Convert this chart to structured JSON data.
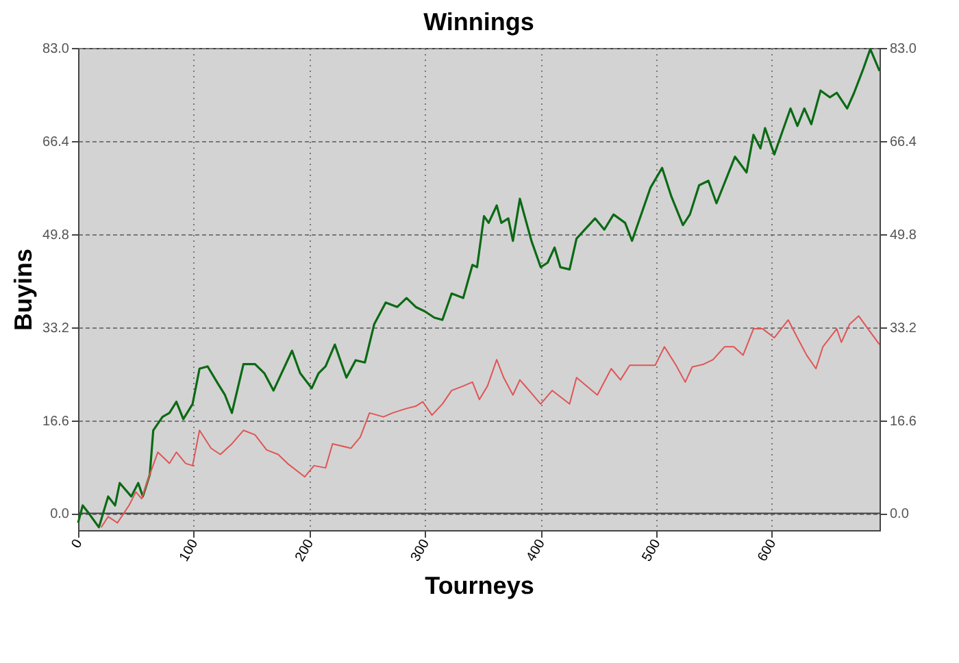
{
  "chart_data": {
    "type": "line",
    "title": "Winnings",
    "xlabel": "Tourneys",
    "ylabel": "Buyins",
    "xlim": [
      0,
      693
    ],
    "xticks": [
      0,
      100,
      200,
      300,
      400,
      500,
      600
    ],
    "ylim": [
      -3,
      83
    ],
    "yticks": [
      {
        "value": 0,
        "label": "0.0"
      },
      16.6,
      33.2,
      49.8,
      66.4,
      {
        "value": 83,
        "label": "83.0"
      }
    ],
    "y2lim": [
      -3,
      83
    ],
    "y2ticks": [
      {
        "value": 0,
        "label": "0.0"
      },
      16.6,
      33.2,
      49.8,
      66.4,
      {
        "value": 83,
        "label": "83.0"
      }
    ],
    "grid": true,
    "marker": "none",
    "line_style": "solid",
    "ref_lines": [
      {
        "axis": "y",
        "value": 0,
        "color": "#404040",
        "line_style": "solid"
      }
    ],
    "series": [
      {
        "color": "#0b6a14",
        "x": [
          0,
          4,
          10,
          18,
          26,
          32,
          36,
          46,
          52,
          56,
          62,
          65,
          73,
          79,
          85,
          91,
          99,
          105,
          112,
          121,
          127,
          133,
          143,
          153,
          161,
          169,
          185,
          192,
          202,
          208,
          214,
          222,
          232,
          240,
          248,
          256,
          266,
          276,
          284,
          292,
          300,
          308,
          315,
          323,
          333,
          341,
          345,
          351,
          355,
          362,
          366,
          372,
          376,
          382,
          392,
          400,
          406,
          412,
          417,
          425,
          431,
          447,
          455,
          463,
          473,
          479,
          495,
          505,
          513,
          523,
          529,
          537,
          545,
          552,
          568,
          578,
          584,
          590,
          594,
          602,
          616,
          622,
          628,
          634,
          642,
          650,
          656,
          665,
          671,
          679,
          685,
          693
        ],
        "values": [
          -1.7,
          1.4,
          -0.2,
          -2.5,
          3.0,
          1.4,
          5.4,
          3.0,
          5.4,
          3.0,
          6.9,
          14.8,
          17.2,
          17.9,
          19.9,
          16.8,
          19.5,
          25.8,
          26.2,
          23.1,
          21.1,
          17.9,
          26.6,
          26.6,
          25.0,
          21.9,
          29.0,
          25.0,
          22.3,
          25.0,
          26.2,
          30.1,
          24.2,
          27.3,
          26.9,
          33.7,
          37.6,
          36.8,
          38.4,
          36.8,
          36.0,
          34.9,
          34.5,
          39.2,
          38.4,
          44.3,
          43.9,
          53.0,
          51.8,
          54.9,
          51.8,
          52.6,
          48.6,
          56.1,
          48.6,
          43.9,
          44.7,
          47.4,
          43.9,
          43.5,
          49.0,
          52.6,
          50.6,
          53.3,
          51.8,
          48.6,
          58.1,
          61.6,
          56.5,
          51.4,
          53.3,
          58.5,
          59.3,
          55.3,
          63.6,
          60.8,
          67.5,
          65.1,
          68.7,
          64.0,
          72.2,
          69.1,
          72.2,
          69.4,
          75.4,
          74.2,
          75.0,
          72.2,
          75.0,
          79.3,
          82.8,
          78.9
        ]
      },
      {
        "color": "#e05555",
        "x": [
          20,
          26,
          34,
          44,
          50,
          55,
          62,
          69,
          79,
          85,
          93,
          99,
          105,
          115,
          123,
          133,
          143,
          153,
          163,
          173,
          181,
          196,
          204,
          214,
          220,
          236,
          244,
          252,
          264,
          272,
          284,
          292,
          298,
          306,
          315,
          323,
          333,
          341,
          347,
          354,
          362,
          368,
          376,
          382,
          390,
          400,
          410,
          425,
          431,
          449,
          461,
          469,
          477,
          499,
          507,
          517,
          525,
          531,
          541,
          549,
          559,
          567,
          575,
          584,
          592,
          602,
          614,
          622,
          630,
          638,
          644,
          656,
          660,
          667,
          675,
          683,
          693
        ],
        "values": [
          -2.5,
          -0.6,
          -1.7,
          1.4,
          3.8,
          2.6,
          6.9,
          10.9,
          8.9,
          10.9,
          8.9,
          8.5,
          14.8,
          11.6,
          10.5,
          12.4,
          14.8,
          14.0,
          11.3,
          10.5,
          8.9,
          6.5,
          8.5,
          8.1,
          12.4,
          11.6,
          13.6,
          17.9,
          17.2,
          17.9,
          18.7,
          19.1,
          19.9,
          17.5,
          19.5,
          21.9,
          22.7,
          23.4,
          20.3,
          22.7,
          27.4,
          24.2,
          21.1,
          23.8,
          21.9,
          19.5,
          21.9,
          19.5,
          24.2,
          21.1,
          25.8,
          23.8,
          26.4,
          26.4,
          29.7,
          26.4,
          23.4,
          26.1,
          26.6,
          27.4,
          29.7,
          29.7,
          28.2,
          32.9,
          32.9,
          31.3,
          34.5,
          31.3,
          28.2,
          25.8,
          29.7,
          32.9,
          30.5,
          33.7,
          35.2,
          32.9,
          30.1
        ]
      }
    ]
  }
}
